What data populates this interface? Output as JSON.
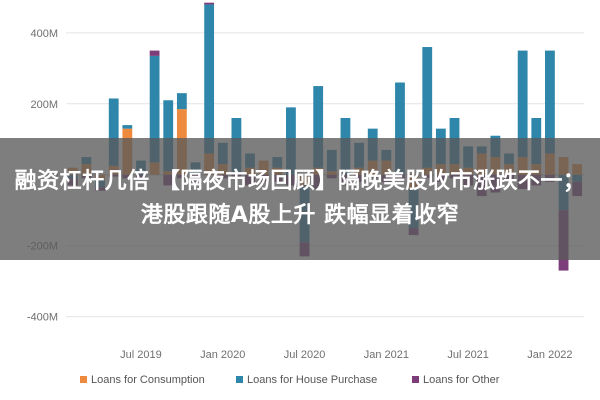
{
  "headline": "融资杠杆几倍 【隔夜市场回顾】隔晚美股收市涨跌不一；港股跟随A股上升 跌幅显着收窄",
  "chart_data": {
    "type": "bar",
    "stacked": true,
    "yticks": [
      {
        "value": 400,
        "label": "400M"
      },
      {
        "value": 200,
        "label": "200M"
      },
      {
        "value": 0,
        "label": "0"
      },
      {
        "value": -200,
        "label": "-200M"
      },
      {
        "value": -400,
        "label": "-400M"
      }
    ],
    "ylim": [
      -460,
      470
    ],
    "x_tick_labels": [
      {
        "index": 5,
        "label": "Jul 2019"
      },
      {
        "index": 11,
        "label": "Jan 2020"
      },
      {
        "index": 17,
        "label": "Jul 2020"
      },
      {
        "index": 23,
        "label": "Jan 2021"
      },
      {
        "index": 29,
        "label": "Jul 2021"
      },
      {
        "index": 35,
        "label": "Jan 2022"
      }
    ],
    "x_count": 38,
    "series": [
      {
        "name": "Loans for Consumption",
        "color": "#ee8a3e",
        "values": [
          20,
          30,
          -15,
          25,
          130,
          0,
          35,
          10,
          185,
          0,
          60,
          30,
          0,
          20,
          40,
          20,
          0,
          -30,
          20,
          10,
          0,
          20,
          40,
          40,
          0,
          -40,
          20,
          30,
          30,
          20,
          60,
          50,
          30,
          50,
          30,
          60,
          50,
          30
        ]
      },
      {
        "name": "Loans for House Purchase",
        "color": "#2e86ab",
        "values": [
          -10,
          20,
          -20,
          190,
          10,
          40,
          300,
          200,
          45,
          35,
          420,
          60,
          160,
          40,
          0,
          30,
          190,
          -160,
          230,
          60,
          160,
          70,
          90,
          30,
          260,
          -110,
          340,
          100,
          130,
          60,
          20,
          60,
          30,
          300,
          130,
          290,
          -100,
          -20
        ]
      },
      {
        "name": "Loans for Other",
        "color": "#7d3c7a",
        "values": [
          -20,
          -10,
          -10,
          -5,
          -10,
          -10,
          15,
          -30,
          -10,
          -20,
          5,
          -10,
          -10,
          -30,
          -20,
          -20,
          -30,
          -40,
          -40,
          -10,
          -30,
          -20,
          -10,
          -20,
          -10,
          -20,
          -10,
          -20,
          -10,
          -30,
          -60,
          -50,
          -20,
          -40,
          -30,
          -20,
          -170,
          -40
        ]
      }
    ],
    "legend_position": "bottom-left",
    "grid": true
  }
}
